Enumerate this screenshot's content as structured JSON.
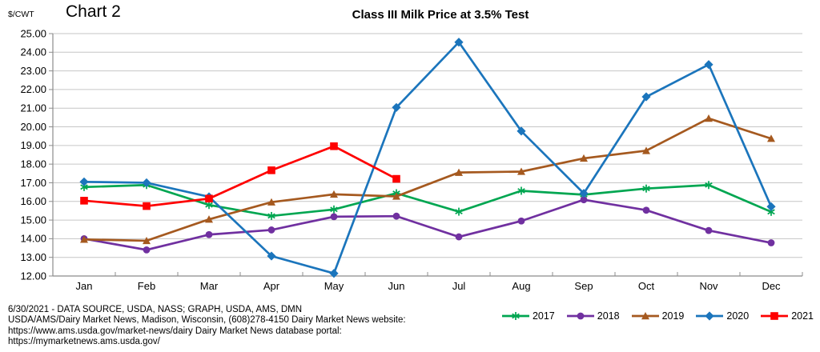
{
  "header": {
    "chart_label": "Chart 2"
  },
  "chart_data": {
    "type": "line",
    "title": "Class III Milk Price at 3.5% Test",
    "ylabel": "$/CWT",
    "xlabel": "",
    "ylim": [
      12,
      25
    ],
    "ytick_step": 1,
    "grid": true,
    "legend_position": "bottom-right",
    "categories": [
      "Jan",
      "Feb",
      "Mar",
      "Apr",
      "May",
      "Jun",
      "Jul",
      "Aug",
      "Sep",
      "Oct",
      "Nov",
      "Dec"
    ],
    "series": [
      {
        "name": "2017",
        "color": "#00A651",
        "marker": "asterisk",
        "values": [
          16.77,
          16.88,
          15.81,
          15.22,
          15.57,
          16.44,
          15.45,
          16.57,
          16.36,
          16.69,
          16.88,
          15.44
        ]
      },
      {
        "name": "2018",
        "color": "#7030A0",
        "marker": "circle",
        "values": [
          14.0,
          13.4,
          14.22,
          14.47,
          15.18,
          15.21,
          14.1,
          14.95,
          16.09,
          15.53,
          14.44,
          13.78
        ]
      },
      {
        "name": "2019",
        "color": "#A5591F",
        "marker": "triangle",
        "values": [
          13.96,
          13.89,
          15.04,
          15.96,
          16.38,
          16.27,
          17.55,
          17.6,
          18.31,
          18.72,
          20.45,
          19.37
        ]
      },
      {
        "name": "2020",
        "color": "#1B75BC",
        "marker": "diamond",
        "values": [
          17.05,
          17.0,
          16.25,
          13.07,
          12.14,
          21.04,
          24.54,
          19.77,
          16.43,
          21.61,
          23.34,
          15.72
        ]
      },
      {
        "name": "2021",
        "color": "#FE0000",
        "marker": "square",
        "values": [
          16.04,
          15.75,
          16.15,
          17.67,
          18.96,
          17.21,
          null,
          null,
          null,
          null,
          null,
          null
        ]
      }
    ],
    "axis_color": "#8C8C8C",
    "grid_color": "#C6C6C6"
  },
  "footer": {
    "lines": [
      "6/30/2021 - DATA SOURCE, USDA, NASS; GRAPH, USDA, AMS, DMN",
      "USDA/AMS/Dairy Market News, Madison, Wisconsin, (608)278-4150 Dairy Market News website:",
      "https://www.ams.usda.gov/market-news/dairy Dairy Market News database portal:",
      "https://mymarketnews.ams.usda.gov/"
    ]
  }
}
